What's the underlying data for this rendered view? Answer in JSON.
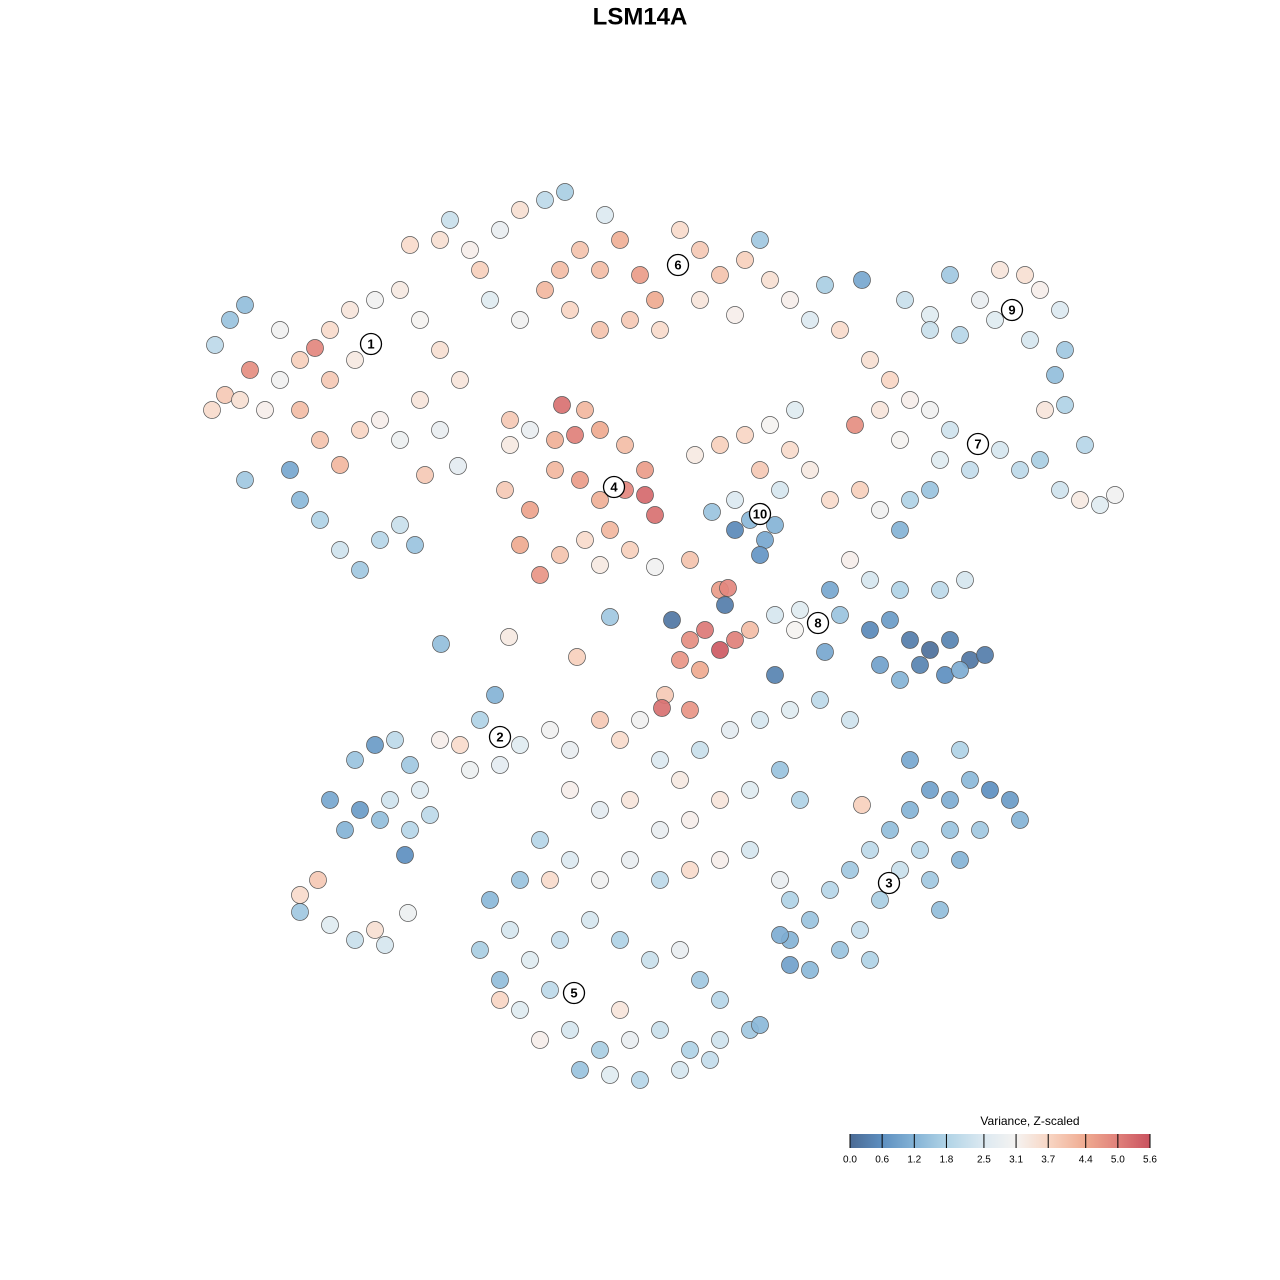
{
  "chart_data": {
    "type": "scatter",
    "title": "LSM14A",
    "colorbar_title": "Variance, Z-scaled",
    "xlim": [
      0,
      1280
    ],
    "ylim": [
      1280,
      0
    ],
    "clim": [
      0,
      5.6
    ],
    "cticks": [
      {
        "value": 0,
        "label": "0.0"
      },
      0.6,
      1.2,
      1.8,
      2.5,
      3.1,
      3.7,
      4.4,
      {
        "value": 5,
        "label": "5.0"
      },
      5.6
    ],
    "colors": [
      "#4a6a94",
      "#5d8fc0",
      "#84b3d6",
      "#b0d3e6",
      "#dce9f1",
      "#f5f3f1",
      "#f8d6c4",
      "#efaa90",
      "#e0807a",
      "#c9525f"
    ],
    "x": [
      215,
      230,
      245,
      212,
      225,
      240,
      265,
      280,
      300,
      315,
      330,
      350,
      375,
      400,
      420,
      440,
      460,
      300,
      320,
      340,
      360,
      380,
      400,
      420,
      440,
      290,
      300,
      320,
      340,
      360,
      380,
      400,
      415,
      250,
      280,
      330,
      355,
      245,
      425,
      458,
      410,
      440,
      470,
      500,
      520,
      545,
      565,
      580,
      600,
      620,
      640,
      655,
      680,
      700,
      720,
      745,
      770,
      790,
      810,
      825,
      490,
      520,
      545,
      570,
      600,
      630,
      660,
      700,
      735,
      760,
      480,
      560,
      450,
      605,
      510,
      530,
      555,
      575,
      600,
      625,
      645,
      505,
      530,
      555,
      580,
      600,
      625,
      645,
      655,
      520,
      540,
      560,
      585,
      610,
      630,
      600,
      562,
      585,
      510,
      862,
      905,
      930,
      950,
      980,
      1000,
      1025,
      1040,
      1060,
      1065,
      1055,
      1065,
      1030,
      930,
      960,
      995,
      840,
      870,
      890,
      910,
      930,
      950,
      855,
      880,
      900,
      1000,
      1020,
      1040,
      1060,
      1080,
      1100,
      1115,
      1045,
      1085,
      970,
      940,
      795,
      770,
      745,
      720,
      695,
      760,
      790,
      810,
      735,
      750,
      765,
      775,
      760,
      735,
      712,
      780,
      830,
      860,
      880,
      910,
      930,
      900,
      850,
      830,
      870,
      900,
      940,
      965,
      690,
      720,
      725,
      672,
      690,
      705,
      720,
      735,
      750,
      680,
      700,
      775,
      795,
      800,
      840,
      870,
      890,
      910,
      930,
      950,
      970,
      985,
      880,
      900,
      920,
      945,
      960,
      775,
      825,
      665,
      662,
      690,
      441,
      509,
      577,
      610,
      655,
      728,
      330,
      345,
      355,
      375,
      395,
      410,
      420,
      440,
      460,
      480,
      495,
      520,
      500,
      470,
      390,
      410,
      430,
      405,
      380,
      360,
      300,
      318,
      300,
      330,
      355,
      375,
      385,
      408,
      550,
      570,
      600,
      620,
      640,
      660,
      680,
      700,
      730,
      760,
      790,
      820,
      850,
      570,
      600,
      630,
      660,
      690,
      720,
      750,
      780,
      800,
      540,
      570,
      600,
      630,
      660,
      690,
      720,
      750,
      780,
      520,
      490,
      510,
      480,
      500,
      530,
      560,
      590,
      620,
      650,
      680,
      700,
      720,
      550,
      520,
      540,
      570,
      600,
      630,
      660,
      690,
      720,
      750,
      580,
      610,
      640,
      680,
      710,
      550,
      620,
      760,
      500,
      790,
      790,
      810,
      830,
      850,
      870,
      890,
      910,
      930,
      950,
      970,
      990,
      1010,
      1020,
      950,
      920,
      900,
      880,
      860,
      840,
      810,
      790,
      930,
      960,
      980,
      910,
      862,
      940,
      870,
      780,
      960
    ],
    "y": [
      345,
      320,
      305,
      410,
      395,
      400,
      410,
      380,
      360,
      348,
      330,
      310,
      300,
      290,
      320,
      350,
      380,
      410,
      440,
      465,
      430,
      420,
      440,
      400,
      430,
      470,
      500,
      520,
      550,
      570,
      540,
      525,
      545,
      370,
      330,
      380,
      360,
      480,
      475,
      466,
      245,
      240,
      250,
      230,
      210,
      200,
      192,
      250,
      270,
      240,
      275,
      300,
      230,
      250,
      275,
      260,
      280,
      300,
      320,
      285,
      300,
      320,
      290,
      310,
      330,
      320,
      330,
      300,
      315,
      240,
      270,
      270,
      220,
      215,
      445,
      430,
      440,
      435,
      430,
      445,
      470,
      490,
      510,
      470,
      480,
      500,
      490,
      495,
      515,
      545,
      575,
      555,
      540,
      530,
      550,
      565,
      405,
      410,
      420,
      280,
      300,
      315,
      275,
      300,
      270,
      275,
      290,
      310,
      350,
      375,
      405,
      340,
      330,
      335,
      320,
      330,
      360,
      380,
      400,
      410,
      430,
      425,
      410,
      440,
      450,
      470,
      460,
      490,
      500,
      505,
      495,
      410,
      445,
      470,
      460,
      410,
      425,
      435,
      445,
      455,
      470,
      450,
      470,
      500,
      520,
      540,
      525,
      555,
      530,
      512,
      490,
      500,
      490,
      510,
      500,
      490,
      530,
      560,
      590,
      580,
      590,
      590,
      580,
      560,
      590,
      605,
      620,
      640,
      630,
      650,
      640,
      630,
      660,
      670,
      615,
      630,
      610,
      615,
      630,
      620,
      640,
      650,
      640,
      660,
      655,
      665,
      680,
      665,
      675,
      670,
      675,
      652,
      695,
      708,
      710,
      644,
      637,
      657,
      617,
      567,
      588,
      800,
      830,
      760,
      745,
      740,
      765,
      790,
      740,
      745,
      720,
      695,
      745,
      765,
      770,
      800,
      830,
      815,
      855,
      820,
      810,
      895,
      880,
      912,
      925,
      940,
      930,
      945,
      913,
      730,
      750,
      720,
      740,
      720,
      760,
      780,
      750,
      730,
      720,
      710,
      700,
      720,
      790,
      810,
      800,
      830,
      820,
      800,
      790,
      770,
      800,
      840,
      860,
      880,
      860,
      880,
      870,
      860,
      850,
      880,
      880,
      900,
      930,
      950,
      980,
      960,
      940,
      920,
      940,
      960,
      950,
      980,
      1000,
      990,
      1010,
      1040,
      1030,
      1050,
      1040,
      1030,
      1050,
      1040,
      1030,
      1070,
      1075,
      1080,
      1070,
      1060,
      880,
      1010,
      1025,
      1000,
      900,
      940,
      920,
      890,
      870,
      850,
      830,
      810,
      790,
      800,
      780,
      790,
      800,
      820,
      830,
      850,
      870,
      900,
      930,
      950,
      970,
      965,
      880,
      860,
      830,
      760,
      805,
      910,
      960,
      935,
      750
    ],
    "values": [
      2.0,
      1.5,
      1.4,
      3.6,
      3.9,
      3.5,
      3.2,
      3.0,
      3.8,
      4.9,
      3.6,
      3.4,
      3.0,
      3.3,
      3.1,
      3.5,
      3.4,
      4.1,
      4.0,
      4.2,
      3.7,
      3.2,
      2.9,
      3.4,
      2.8,
      1.0,
      1.3,
      1.8,
      2.3,
      1.6,
      1.9,
      2.2,
      1.5,
      4.8,
      3.0,
      3.9,
      3.3,
      1.6,
      3.9,
      2.7,
      3.6,
      3.5,
      3.2,
      2.8,
      3.5,
      2.0,
      1.7,
      4.0,
      4.1,
      4.3,
      4.6,
      4.4,
      3.6,
      3.9,
      4.0,
      3.8,
      3.5,
      3.2,
      2.5,
      1.7,
      2.6,
      3.0,
      4.2,
      3.7,
      4.0,
      3.9,
      3.6,
      3.4,
      3.2,
      1.6,
      3.8,
      4.1,
      2.2,
      2.5,
      3.3,
      2.8,
      4.3,
      5.0,
      4.4,
      4.1,
      4.6,
      3.9,
      4.5,
      4.2,
      4.6,
      4.3,
      4.9,
      5.3,
      5.2,
      4.4,
      4.7,
      4.0,
      3.6,
      4.2,
      3.8,
      3.3,
      5.2,
      4.2,
      3.9,
      1.0,
      2.2,
      2.6,
      1.6,
      2.8,
      3.4,
      3.5,
      3.2,
      2.5,
      1.6,
      1.4,
      1.8,
      2.4,
      2.2,
      1.9,
      2.6,
      3.6,
      3.5,
      3.7,
      3.2,
      3.0,
      2.3,
      4.8,
      3.4,
      3.1,
      2.4,
      2.0,
      1.7,
      2.3,
      3.3,
      2.6,
      3.0,
      3.4,
      1.9,
      2.1,
      2.6,
      2.6,
      3.1,
      3.7,
      3.8,
      3.3,
      3.9,
      3.6,
      3.3,
      2.5,
      1.3,
      1.0,
      1.2,
      0.7,
      0.5,
      1.5,
      2.4,
      3.6,
      3.8,
      3.0,
      1.8,
      1.5,
      1.2,
      3.2,
      1.0,
      2.4,
      1.8,
      2.0,
      2.4,
      4.0,
      4.6,
      0.3,
      0.2,
      4.8,
      5.1,
      5.5,
      5.0,
      4.1,
      4.7,
      4.4,
      2.4,
      3.1,
      2.6,
      1.5,
      0.5,
      0.8,
      0.3,
      0.1,
      0.4,
      0.2,
      0.3,
      0.9,
      1.2,
      0.4,
      0.6,
      1.1,
      0.4,
      1.0,
      3.9,
      5.2,
      4.7,
      1.4,
      3.3,
      3.8,
      1.6,
      3.0,
      4.9,
      1.0,
      1.2,
      1.5,
      0.8,
      2.0,
      1.6,
      2.5,
      3.2,
      3.6,
      1.8,
      1.2,
      2.6,
      2.7,
      2.9,
      2.3,
      1.9,
      2.0,
      0.6,
      1.4,
      0.8,
      3.6,
      3.9,
      1.6,
      2.6,
      2.2,
      3.5,
      2.4,
      2.9,
      3.0,
      2.8,
      3.9,
      3.6,
      3.0,
      2.5,
      3.3,
      2.2,
      2.7,
      2.4,
      2.6,
      2.0,
      2.3,
      3.2,
      2.7,
      3.4,
      2.8,
      3.2,
      3.4,
      2.6,
      1.5,
      1.8,
      1.9,
      2.5,
      3.0,
      2.8,
      2.0,
      3.6,
      3.2,
      2.4,
      2.8,
      1.5,
      1.3,
      2.4,
      1.7,
      1.4,
      2.6,
      2.1,
      2.4,
      1.8,
      2.2,
      2.8,
      1.6,
      1.9,
      2.0,
      2.6,
      3.2,
      2.4,
      1.7,
      2.8,
      2.2,
      1.8,
      2.3,
      1.6,
      1.5,
      2.6,
      1.9,
      2.4,
      2.1,
      3.6,
      3.4,
      1.3,
      3.7,
      1.8,
      1.2,
      1.5,
      1.9,
      1.6,
      2.0,
      1.4,
      1.2,
      0.9,
      1.1,
      1.3,
      0.6,
      0.8,
      1.2,
      1.5,
      1.9,
      2.2,
      1.7,
      2.1,
      1.5,
      1.3,
      0.9,
      1.6,
      1.2,
      1.6,
      1.0,
      3.8,
      1.4,
      1.8,
      1.1,
      1.8
    ],
    "cluster_labels": [
      {
        "label": "1",
        "x": 371,
        "y": 344
      },
      {
        "label": "2",
        "x": 500,
        "y": 737
      },
      {
        "label": "3",
        "x": 889,
        "y": 883
      },
      {
        "label": "4",
        "x": 614,
        "y": 487
      },
      {
        "label": "5",
        "x": 574,
        "y": 993
      },
      {
        "label": "6",
        "x": 678,
        "y": 265
      },
      {
        "label": "7",
        "x": 978,
        "y": 444
      },
      {
        "label": "8",
        "x": 818,
        "y": 623
      },
      {
        "label": "9",
        "x": 1012,
        "y": 310
      },
      {
        "label": "10",
        "x": 760,
        "y": 514
      }
    ]
  }
}
